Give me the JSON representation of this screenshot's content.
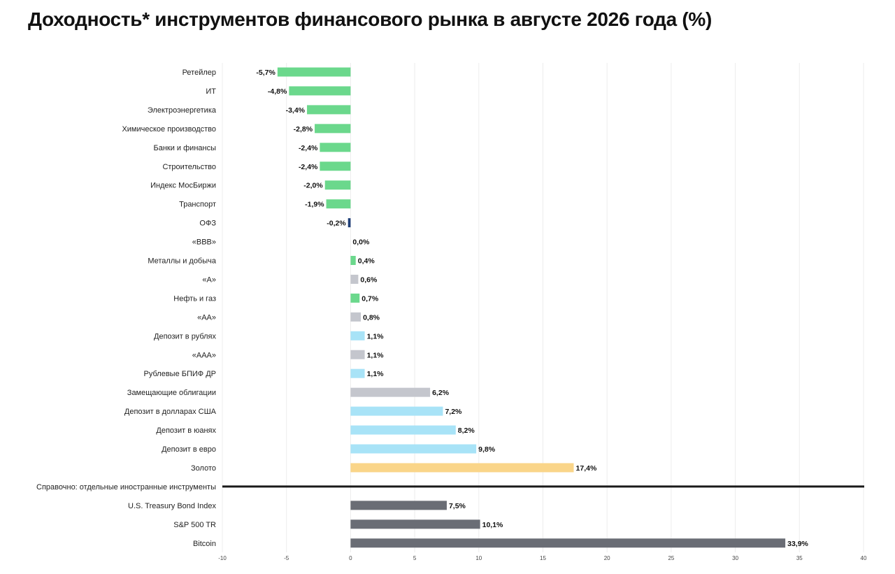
{
  "title": "Доходность* инструментов финансового рынка в августе 2026 года (%)",
  "colors": {
    "green": "#6bd88c",
    "navy": "#1f3f78",
    "gray_light": "#c4c6cd",
    "blue_light": "#a8e3f7",
    "gold": "#fad589",
    "gray_dark": "#6a6d75",
    "separator": "#1a1a1a",
    "grid": "#ececec"
  },
  "chart_data": {
    "type": "bar",
    "orientation": "horizontal",
    "xlim": [
      -10,
      40
    ],
    "x_ticks": [
      -10,
      -5,
      0,
      5,
      10,
      15,
      20,
      25,
      30,
      35,
      40
    ],
    "x_tick_labels": [
      "-10",
      "-5",
      "0",
      "5",
      "10",
      "15",
      "20",
      "25",
      "30",
      "35",
      "40"
    ],
    "grid": true,
    "rows": [
      {
        "label": "Ретейлер",
        "value": -5.7,
        "value_label": "-5,7%",
        "color": "green"
      },
      {
        "label": "ИТ",
        "value": -4.8,
        "value_label": "-4,8%",
        "color": "green"
      },
      {
        "label": "Электроэнергетика",
        "value": -3.4,
        "value_label": "-3,4%",
        "color": "green"
      },
      {
        "label": "Химическое производство",
        "value": -2.8,
        "value_label": "-2,8%",
        "color": "green"
      },
      {
        "label": "Банки и финансы",
        "value": -2.4,
        "value_label": "-2,4%",
        "color": "green"
      },
      {
        "label": "Строительство",
        "value": -2.4,
        "value_label": "-2,4%",
        "color": "green"
      },
      {
        "label": "Индекс МосБиржи",
        "value": -2.0,
        "value_label": "-2,0%",
        "color": "green"
      },
      {
        "label": "Транспорт",
        "value": -1.9,
        "value_label": "-1,9%",
        "color": "green"
      },
      {
        "label": "ОФЗ",
        "value": -0.2,
        "value_label": "-0,2%",
        "color": "navy"
      },
      {
        "label": "«BBB»",
        "value": 0.0,
        "value_label": "0,0%",
        "color": "gray_light"
      },
      {
        "label": "Металлы и добыча",
        "value": 0.4,
        "value_label": "0,4%",
        "color": "green"
      },
      {
        "label": "«А»",
        "value": 0.6,
        "value_label": "0,6%",
        "color": "gray_light"
      },
      {
        "label": "Нефть и газ",
        "value": 0.7,
        "value_label": "0,7%",
        "color": "green"
      },
      {
        "label": "«АА»",
        "value": 0.8,
        "value_label": "0,8%",
        "color": "gray_light"
      },
      {
        "label": "Депозит в рублях",
        "value": 1.1,
        "value_label": "1,1%",
        "color": "blue_light"
      },
      {
        "label": "«ААА»",
        "value": 1.1,
        "value_label": "1,1%",
        "color": "gray_light"
      },
      {
        "label": "Рублевые БПИФ ДР",
        "value": 1.1,
        "value_label": "1,1%",
        "color": "blue_light"
      },
      {
        "label": "Замещающие облигации",
        "value": 6.2,
        "value_label": "6,2%",
        "color": "gray_light"
      },
      {
        "label": "Депозит в долларах США",
        "value": 7.2,
        "value_label": "7,2%",
        "color": "blue_light"
      },
      {
        "label": "Депозит в юанях",
        "value": 8.2,
        "value_label": "8,2%",
        "color": "blue_light"
      },
      {
        "label": "Депозит в евро",
        "value": 9.8,
        "value_label": "9,8%",
        "color": "blue_light"
      },
      {
        "label": "Золото",
        "value": 17.4,
        "value_label": "17,4%",
        "color": "gold"
      },
      {
        "label": "Справочно: отдельные иностранные инструменты",
        "separator": true
      },
      {
        "label": "U.S. Treasury Bond Index",
        "value": 7.5,
        "value_label": "7,5%",
        "color": "gray_dark"
      },
      {
        "label": "S&P 500 TR",
        "value": 10.1,
        "value_label": "10,1%",
        "color": "gray_dark"
      },
      {
        "label": "Bitcoin",
        "value": 33.9,
        "value_label": "33,9%",
        "color": "gray_dark"
      }
    ]
  }
}
